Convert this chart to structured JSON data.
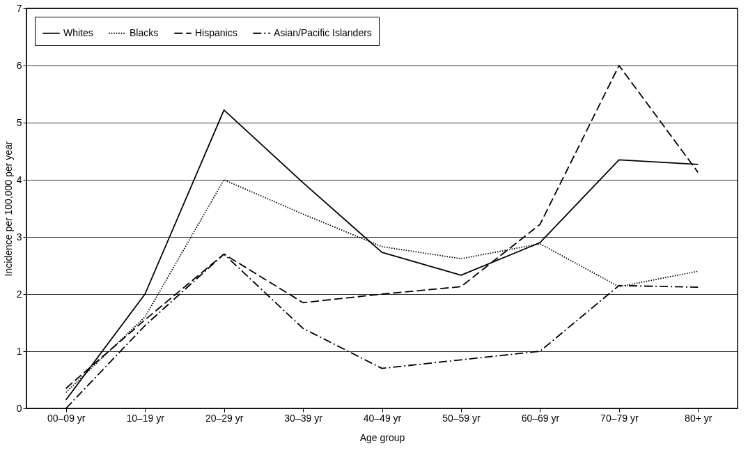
{
  "chart_data": {
    "type": "line",
    "xlabel": "Age group",
    "ylabel": "Incidence per 100,000 per year",
    "categories": [
      "00–09 yr",
      "10–19 yr",
      "20–29 yr",
      "30–39 yr",
      "40–49 yr",
      "50–59 yr",
      "60–69 yr",
      "70–79 yr",
      "80+ yr"
    ],
    "series": [
      {
        "name": "Whites",
        "color": "#000000",
        "line_style": "solid",
        "values": [
          0.15,
          2.0,
          5.22,
          3.95,
          2.73,
          2.33,
          2.9,
          4.35,
          4.27
        ]
      },
      {
        "name": "Blacks",
        "color": "#000000",
        "line_style": "dotted",
        "values": [
          0.28,
          1.6,
          4.0,
          3.4,
          2.83,
          2.62,
          2.88,
          2.13,
          2.4
        ]
      },
      {
        "name": "Hispanics",
        "color": "#000000",
        "line_style": "dashed",
        "values": [
          0.35,
          1.55,
          2.7,
          1.85,
          2.0,
          2.13,
          3.22,
          6.0,
          4.13
        ]
      },
      {
        "name": "Asian/Pacific Islanders",
        "color": "#000000",
        "line_style": "dashdot",
        "values": [
          0.0,
          1.45,
          2.7,
          1.4,
          0.7,
          0.85,
          1.0,
          2.15,
          2.12
        ]
      }
    ],
    "ylim": [
      0,
      7
    ],
    "yticks": [
      0,
      1,
      2,
      3,
      4,
      5,
      6,
      7
    ],
    "grid": "y",
    "legend": "top left",
    "marker": "none"
  }
}
